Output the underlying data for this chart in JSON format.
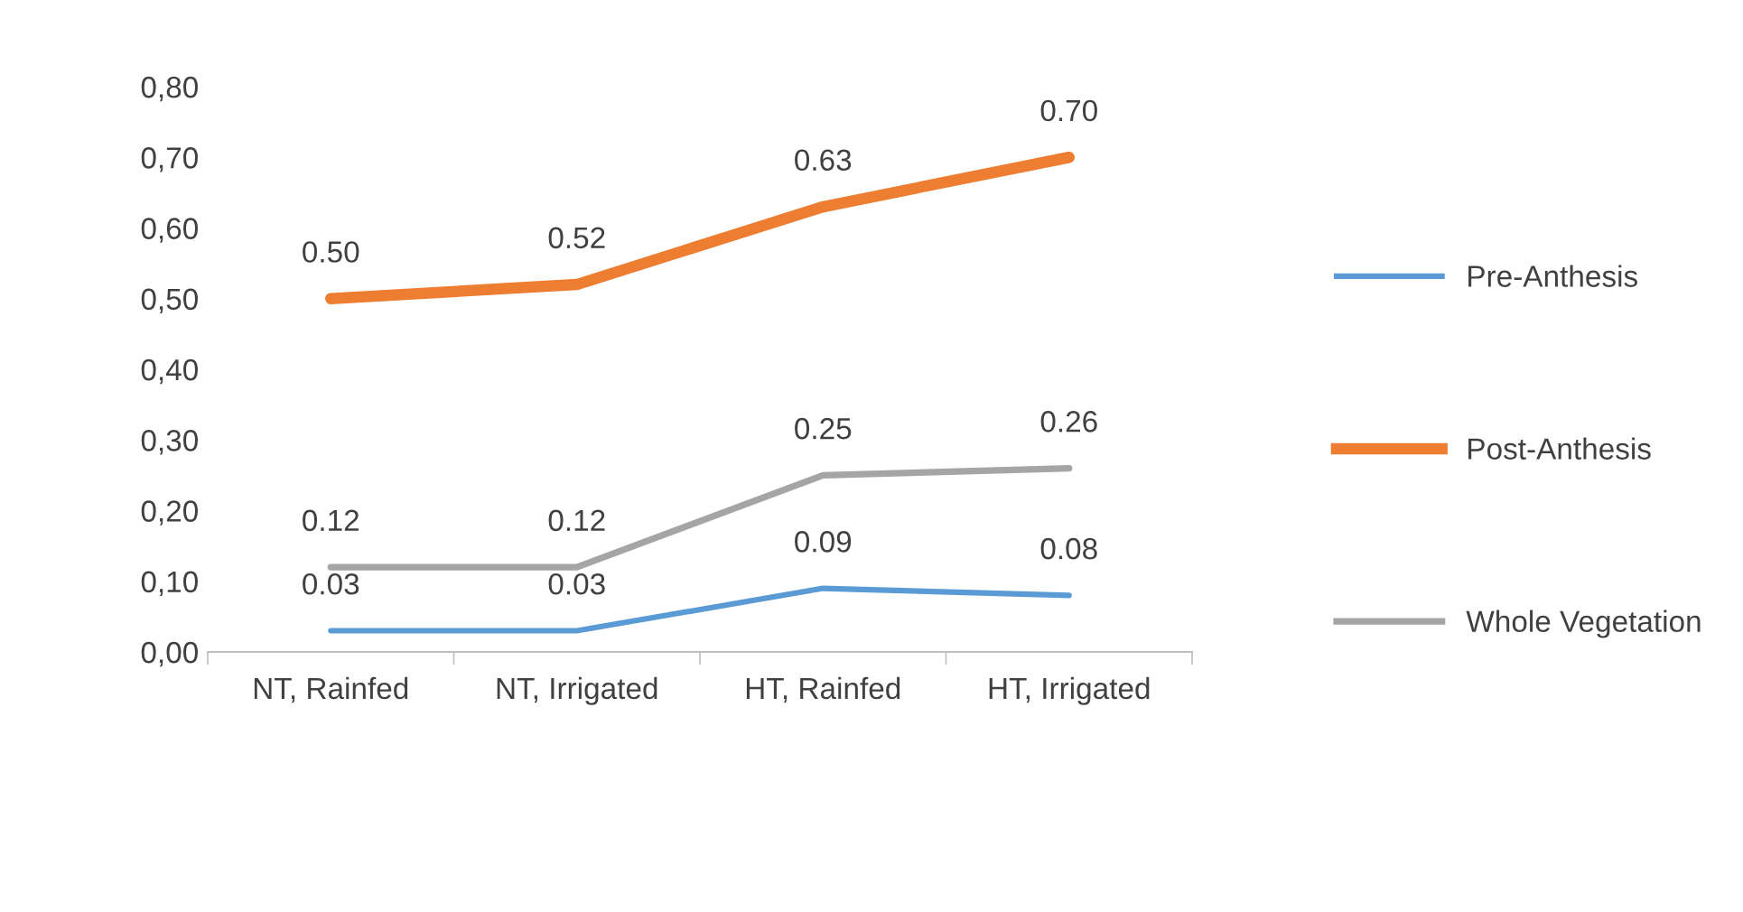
{
  "chart_data": {
    "type": "line",
    "categories": [
      "NT, Rainfed",
      "NT, Irrigated",
      "HT, Rainfed",
      "HT, Irrigated"
    ],
    "series": [
      {
        "name": "Pre-Anthesis",
        "color": "#5b9bd5",
        "values": [
          0.03,
          0.03,
          0.09,
          0.08
        ],
        "value_labels": [
          "0.03",
          "0.03",
          "0.09",
          "0.08"
        ]
      },
      {
        "name": "Post-Anthesis",
        "color": "#ed7d31",
        "values": [
          0.5,
          0.52,
          0.63,
          0.7
        ],
        "value_labels": [
          "0.50",
          "0.52",
          "0.63",
          "0.70"
        ]
      },
      {
        "name": "Whole Vegetation",
        "color": "#a5a5a5",
        "values": [
          0.12,
          0.12,
          0.25,
          0.26
        ],
        "value_labels": [
          "0.12",
          "0.12",
          "0.25",
          "0.26"
        ]
      }
    ],
    "ylim": [
      0,
      0.8
    ],
    "yticks": [
      {
        "value": 0,
        "label": "0,00"
      },
      {
        "value": 0.1,
        "label": "0,10"
      },
      {
        "value": 0.2,
        "label": "0,20"
      },
      {
        "value": 0.3,
        "label": "0,30"
      },
      {
        "value": 0.4,
        "label": "0,40"
      },
      {
        "value": 0.5,
        "label": "0,50"
      },
      {
        "value": 0.6,
        "label": "0,60"
      },
      {
        "value": 0.7,
        "label": "0,70"
      },
      {
        "value": 0.8,
        "label": "0,80"
      }
    ],
    "grid": false,
    "legend": "right",
    "marker": "none",
    "line_style": "solid"
  }
}
